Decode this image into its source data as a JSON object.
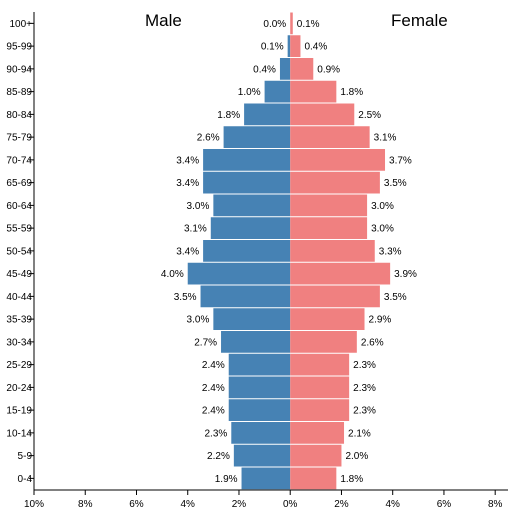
{
  "chart_data": {
    "type": "bar",
    "orientation": "horizontal",
    "categories": [
      "100+",
      "95-99",
      "90-94",
      "85-89",
      "80-84",
      "75-79",
      "70-74",
      "65-69",
      "60-64",
      "55-59",
      "50-54",
      "45-49",
      "40-44",
      "35-39",
      "30-34",
      "25-29",
      "20-24",
      "15-19",
      "10-14",
      "5-9",
      "0-4"
    ],
    "series": [
      {
        "name": "Male",
        "color": "#4682b4",
        "values": [
          0.0,
          0.1,
          0.4,
          1.0,
          1.8,
          2.6,
          3.4,
          3.4,
          3.0,
          3.1,
          3.4,
          4.0,
          3.5,
          3.0,
          2.7,
          2.4,
          2.4,
          2.4,
          2.3,
          2.2,
          1.9
        ],
        "labels": [
          "0.0%",
          "0.1%",
          "0.4%",
          "1.0%",
          "1.8%",
          "2.6%",
          "3.4%",
          "3.4%",
          "3.0%",
          "3.1%",
          "3.4%",
          "4.0%",
          "3.5%",
          "3.0%",
          "2.7%",
          "2.4%",
          "2.4%",
          "2.4%",
          "2.3%",
          "2.2%",
          "1.9%"
        ]
      },
      {
        "name": "Female",
        "color": "#f08080",
        "values": [
          0.1,
          0.4,
          0.9,
          1.8,
          2.5,
          3.1,
          3.7,
          3.5,
          3.0,
          3.0,
          3.3,
          3.9,
          3.5,
          2.9,
          2.6,
          2.3,
          2.3,
          2.3,
          2.1,
          2.0,
          1.8
        ],
        "labels": [
          "0.1%",
          "0.4%",
          "0.9%",
          "1.8%",
          "2.5%",
          "3.1%",
          "3.7%",
          "3.5%",
          "3.0%",
          "3.0%",
          "3.3%",
          "3.9%",
          "3.5%",
          "2.9%",
          "2.6%",
          "2.3%",
          "2.3%",
          "2.3%",
          "2.1%",
          "2.0%",
          "1.8%"
        ]
      }
    ],
    "x_ticks": [
      -10,
      -8,
      -6,
      -4,
      -2,
      0,
      2,
      4,
      6,
      8
    ],
    "x_tick_labels": [
      "10%",
      "8%",
      "6%",
      "4%",
      "2%",
      "0%",
      "2%",
      "4%",
      "6%",
      "8%"
    ],
    "xlim": [
      -10,
      8.5
    ],
    "title": "",
    "xlabel": "",
    "ylabel": "",
    "grid": false,
    "legend_placement": "top"
  }
}
